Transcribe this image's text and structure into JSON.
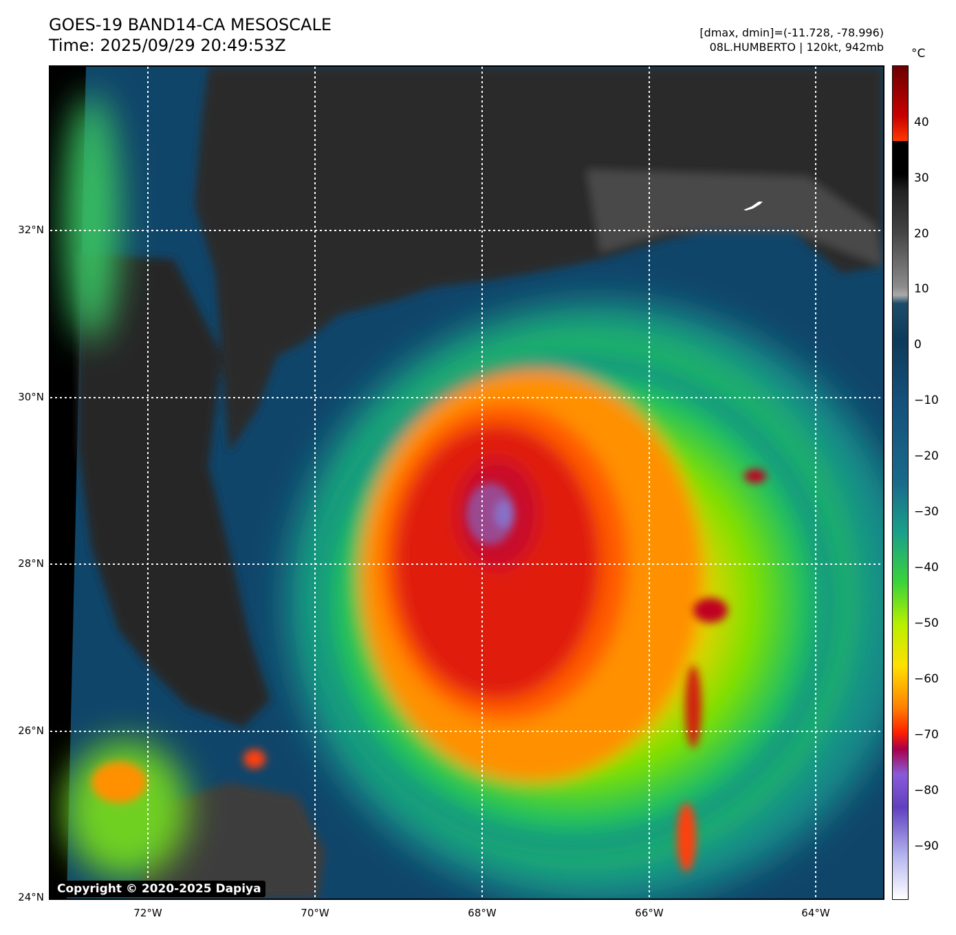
{
  "header": {
    "title_line1": "GOES-19 BAND14-CA MESOSCALE",
    "title_line2": "Time: 2025/09/29 20:49:53Z",
    "range_text": "[dmax, dmin]=(-11.728, -78.996)",
    "storm_text": "08L.HUMBERTO | 120kt, 942mb"
  },
  "map": {
    "lat_labels": [
      "32°N",
      "30°N",
      "28°N",
      "26°N",
      "24°N"
    ],
    "lon_labels": [
      "72°W",
      "70°W",
      "68°W",
      "66°W",
      "64°W"
    ],
    "copyright": "Copyright © 2020-2025 Dapiya"
  },
  "colorbar": {
    "unit": "°C",
    "ticks": [
      "40",
      "30",
      "20",
      "10",
      "0",
      "−10",
      "−20",
      "−30",
      "−40",
      "−50",
      "−60",
      "−70",
      "−80",
      "−90"
    ],
    "min": -100,
    "max": 50
  },
  "colors": {
    "cold_core": "#d01010",
    "overshoot": "#8870c8",
    "ocean": "#0f4468",
    "clear": "#2c2c2c"
  }
}
